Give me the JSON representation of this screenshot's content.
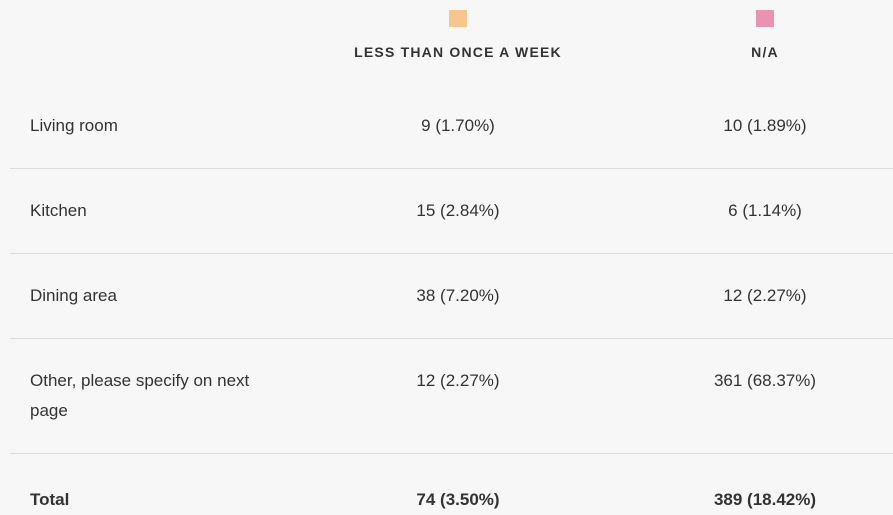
{
  "table": {
    "columns": [
      {
        "label": "LESS THAN ONCE A WEEK",
        "color": "#f7c68f"
      },
      {
        "label": "N/A",
        "color": "#e993b3"
      }
    ],
    "rows": [
      {
        "label": "Living room",
        "cells": [
          "9 (1.70%)",
          "10 (1.89%)"
        ]
      },
      {
        "label": "Kitchen",
        "cells": [
          "15 (2.84%)",
          "6 (1.14%)"
        ]
      },
      {
        "label": "Dining area",
        "cells": [
          "38 (7.20%)",
          "12 (2.27%)"
        ]
      },
      {
        "label": "Other, please specify on next page",
        "cells": [
          "12 (2.27%)",
          "361 (68.37%)"
        ]
      }
    ],
    "total": {
      "label": "Total",
      "cells": [
        "74 (3.50%)",
        "389 (18.42%)"
      ]
    }
  }
}
